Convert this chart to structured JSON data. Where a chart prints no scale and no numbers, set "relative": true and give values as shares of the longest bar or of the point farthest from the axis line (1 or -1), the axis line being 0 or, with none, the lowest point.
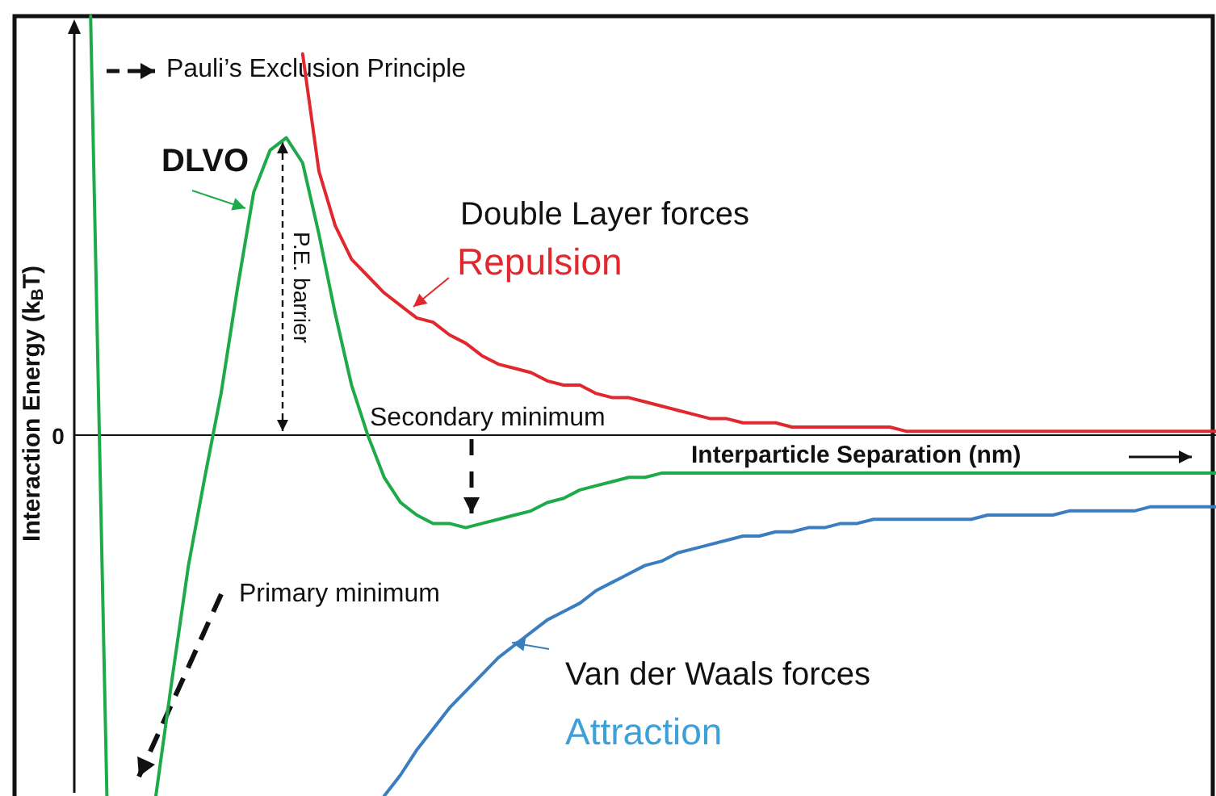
{
  "chart_data": {
    "type": "line",
    "relative": true,
    "xlabel": "Interparticle Separation (nm)",
    "ylabel": "Interaction Energy (k$_{B}$T)",
    "categories": [
      null,
      null,
      null,
      null,
      null,
      null,
      null,
      null,
      null,
      null,
      null,
      null,
      null,
      null,
      null,
      null,
      null,
      null,
      null,
      null,
      null,
      null,
      null,
      null,
      null,
      null,
      null,
      null,
      null,
      null,
      null,
      null,
      null,
      null,
      null,
      null,
      null,
      null,
      null,
      null,
      null,
      null,
      null,
      null,
      null,
      null,
      null,
      null,
      null,
      null,
      null,
      null,
      null,
      null,
      null,
      null,
      null,
      null,
      null,
      null,
      null,
      null,
      null,
      null,
      null,
      null,
      null,
      null,
      null,
      null,
      null
    ],
    "series": [
      {
        "name": "DLVO",
        "color": "#1faa4a",
        "values": [
          null,
          1.0,
          -0.86,
          null,
          null,
          -0.86,
          -0.58,
          -0.31,
          -0.1,
          0.1,
          0.35,
          0.58,
          0.68,
          0.71,
          0.65,
          0.48,
          0.29,
          0.12,
          0,
          -0.1,
          -0.16,
          -0.19,
          -0.21,
          -0.21,
          -0.22,
          -0.21,
          -0.2,
          -0.19,
          -0.18,
          -0.16,
          -0.15,
          -0.13,
          -0.12,
          -0.11,
          -0.1,
          -0.1,
          -0.09,
          -0.09,
          -0.09,
          -0.09,
          -0.09,
          -0.09,
          -0.09,
          -0.09,
          -0.09,
          -0.09,
          -0.09,
          -0.09,
          -0.09,
          -0.09,
          -0.09,
          -0.09,
          -0.09,
          -0.09,
          -0.09,
          -0.09,
          -0.09,
          -0.09,
          -0.09,
          -0.09,
          -0.09,
          -0.09,
          -0.09,
          -0.09,
          -0.09,
          -0.09,
          -0.09,
          -0.09,
          -0.09,
          -0.09,
          -0.09
        ]
      },
      {
        "name": "Double Layer forces",
        "color": "#e0282e",
        "values": [
          null,
          null,
          null,
          null,
          null,
          null,
          null,
          null,
          null,
          null,
          null,
          null,
          null,
          null,
          0.91,
          0.63,
          0.5,
          0.42,
          0.38,
          0.34,
          0.31,
          0.28,
          0.27,
          0.24,
          0.22,
          0.19,
          0.17,
          0.16,
          0.15,
          0.13,
          0.12,
          0.12,
          0.1,
          0.09,
          0.09,
          0.08,
          0.07,
          0.06,
          0.05,
          0.04,
          0.04,
          0.03,
          0.03,
          0.03,
          0.02,
          0.02,
          0.02,
          0.02,
          0.02,
          0.02,
          0.02,
          0.01,
          0.01,
          0.01,
          0.01,
          0.01,
          0.01,
          0.01,
          0.01,
          0.01,
          0.01,
          0.01,
          0.01,
          0.01,
          0.01,
          0.01,
          0.01,
          0.01,
          0.01,
          0.01,
          0.01
        ]
      },
      {
        "name": "Van der Waals forces",
        "color": "#3a7ec0",
        "values": [
          null,
          null,
          null,
          null,
          null,
          null,
          null,
          null,
          null,
          null,
          null,
          null,
          null,
          null,
          null,
          null,
          null,
          null,
          null,
          -0.86,
          -0.81,
          -0.75,
          -0.7,
          -0.65,
          -0.61,
          -0.57,
          -0.53,
          -0.5,
          -0.47,
          -0.44,
          -0.42,
          -0.4,
          -0.37,
          -0.35,
          -0.33,
          -0.31,
          -0.3,
          -0.28,
          -0.27,
          -0.26,
          -0.25,
          -0.24,
          -0.24,
          -0.23,
          -0.23,
          -0.22,
          -0.22,
          -0.21,
          -0.21,
          -0.2,
          -0.2,
          -0.2,
          -0.2,
          -0.2,
          -0.2,
          -0.2,
          -0.19,
          -0.19,
          -0.19,
          -0.19,
          -0.19,
          -0.18,
          -0.18,
          -0.18,
          -0.18,
          -0.18,
          -0.17,
          -0.17,
          -0.17,
          -0.17,
          -0.17
        ]
      }
    ],
    "annotations": [
      "Pauli’s Exclusion Principle",
      "P.E. barrier",
      "Secondary minimum",
      "Primary minimum",
      "Repulsion",
      "Attraction",
      "0"
    ]
  }
}
